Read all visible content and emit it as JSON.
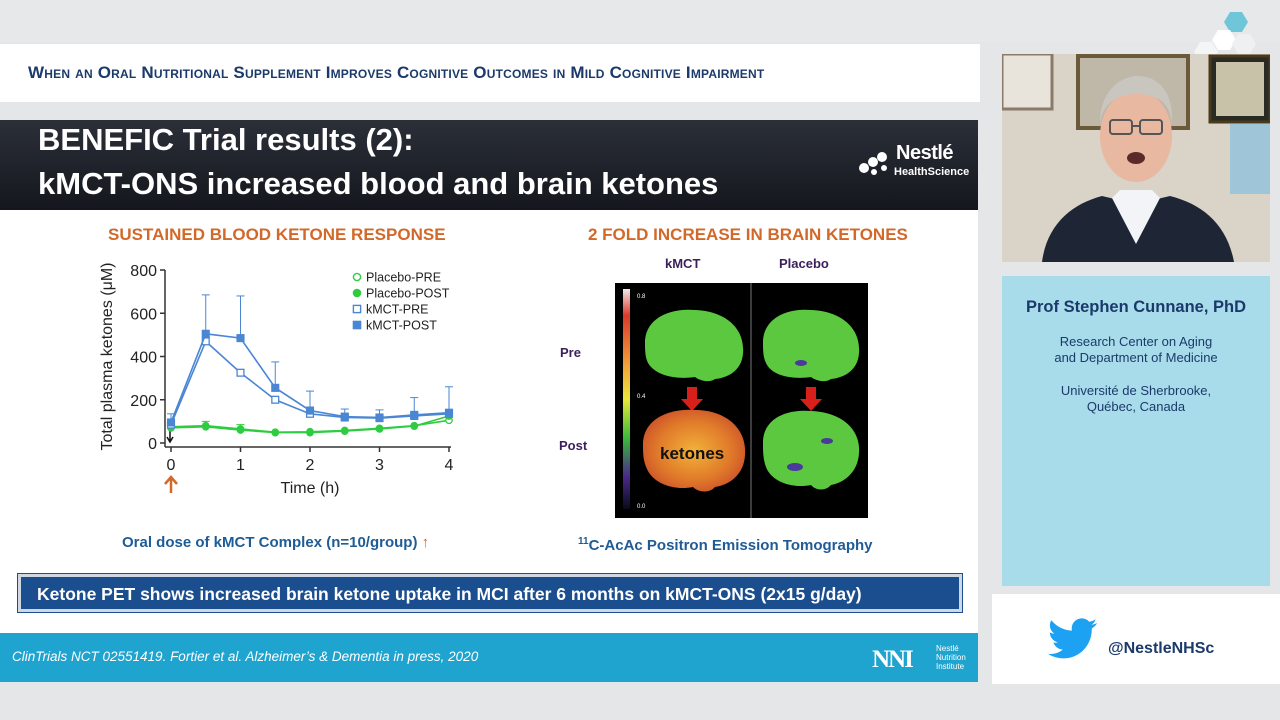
{
  "header": {
    "title": "When an Oral Nutritional Supplement Improves Cognitive Outcomes in Mild Cognitive Impairment"
  },
  "slide": {
    "title_line1": "BENEFIC Trial results (2):",
    "title_line2": "kMCT-ONS increased blood and brain ketones",
    "logo": {
      "name": "Nestlé",
      "sub": "HealthScience"
    },
    "left_section_title": "SUSTAINED BLOOD KETONE RESPONSE",
    "right_section_title": "2 FOLD INCREASE IN BRAIN KETONES",
    "left_caption": "Oral dose of kMCT Complex (n=10/group)",
    "left_caption_arrow": "↑",
    "right_caption_sup": "11",
    "right_caption": "C-AcAc Positron Emission Tomography",
    "pet": {
      "col_kmct": "kMCT",
      "col_placebo": "Placebo",
      "row_pre": "Pre",
      "row_post": "Post",
      "overlay_label": "ketones",
      "scale_top": "0.8",
      "scale_mid": "0.4",
      "scale_bottom": "0.0"
    },
    "banner": "Ketone PET shows increased brain ketone uptake in MCI after 6 months on kMCT-ONS (2x15 g/day)",
    "footer_citation": "ClinTrials NCT 02551419.  Fortier et al. Alzheimer’s & Dementia in press, 2020",
    "footer_logo": {
      "mark": "NNI",
      "sub1": "Nestlé",
      "sub2": "Nutrition",
      "sub3": "Institute"
    }
  },
  "speaker": {
    "name": "Prof Stephen Cunnane, PhD",
    "affiliation_1": "Research Center on Aging",
    "affiliation_2": "and Department of Medicine",
    "affiliation_3": "Université de Sherbrooke,",
    "affiliation_4": "Québec, Canada"
  },
  "social": {
    "handle": "@NestleNHSc",
    "icon": "twitter-icon"
  },
  "colors": {
    "accent_orange": "#d2692a",
    "banner_blue": "#1b4e8e",
    "footer_blue": "#1ea4cf",
    "speaker_card": "#a9dcea"
  },
  "chart_data": {
    "type": "line",
    "xlabel": "Time (h)",
    "ylabel": "Total plasma ketones (μM)",
    "xlim": [
      0,
      4
    ],
    "ylim": [
      0,
      800
    ],
    "xticks": [
      0,
      1,
      2,
      3,
      4
    ],
    "yticks": [
      0,
      200,
      400,
      600,
      800
    ],
    "x": [
      0,
      0.5,
      1,
      1.5,
      2,
      2.5,
      3,
      3.5,
      4
    ],
    "legend_position": "top-right",
    "series": [
      {
        "name": "Placebo-PRE",
        "marker": "open-circle",
        "color": "#2ecc40",
        "values": [
          75,
          80,
          65,
          50,
          52,
          58,
          68,
          80,
          105
        ]
      },
      {
        "name": "Placebo-POST",
        "marker": "filled-circle",
        "color": "#2ecc40",
        "values": [
          70,
          75,
          60,
          48,
          48,
          55,
          65,
          78,
          125
        ]
      },
      {
        "name": "kMCT-PRE",
        "marker": "open-square",
        "color": "#4a86d4",
        "values": [
          85,
          470,
          325,
          200,
          135,
          118,
          115,
          125,
          135
        ]
      },
      {
        "name": "kMCT-POST",
        "marker": "filled-square",
        "color": "#4a86d4",
        "values": [
          95,
          505,
          485,
          255,
          150,
          122,
          118,
          130,
          140
        ]
      }
    ],
    "error_bars_upper": {
      "kMCT-POST": [
        40,
        180,
        195,
        120,
        90,
        35,
        35,
        80,
        120
      ],
      "Placebo-POST": [
        0,
        25,
        25,
        0,
        0,
        0,
        0,
        0,
        0
      ]
    }
  }
}
